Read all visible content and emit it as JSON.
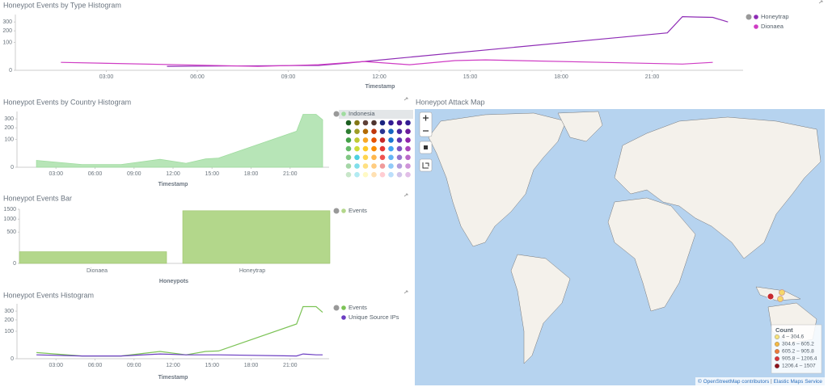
{
  "chart_data": [
    {
      "type": "line",
      "title": "Honeypot Events by Type Histogram",
      "x_label": "Timestamp",
      "scale": "sqrt",
      "xlim": [
        0,
        24
      ],
      "ylim": [
        0,
        400
      ],
      "yticks": [
        0,
        100,
        200,
        300
      ],
      "xticks": [
        {
          "value": 3,
          "label": "03:00"
        },
        {
          "value": 6,
          "label": "06:00"
        },
        {
          "value": 9,
          "label": "09:00"
        },
        {
          "value": 12,
          "label": "12:00"
        },
        {
          "value": 15,
          "label": "15:00"
        },
        {
          "value": 18,
          "label": "18:00"
        },
        {
          "value": 21,
          "label": "21:00"
        }
      ],
      "series": [
        {
          "name": "Honeytrap",
          "color": "#8e2bb5",
          "x": [
            5,
            10,
            11,
            11.5,
            21.5,
            22,
            22.5,
            23,
            23.5
          ],
          "values": [
            2,
            3,
            7,
            10,
            180,
            370,
            365,
            360,
            300
          ]
        },
        {
          "name": "Dionaea",
          "color": "#cf3cc4",
          "x": [
            1.5,
            8,
            10,
            11.5,
            13,
            14.5,
            15.5,
            22,
            23
          ],
          "values": [
            8,
            2,
            4,
            10,
            4,
            12,
            14,
            5,
            8
          ]
        }
      ]
    },
    {
      "type": "area",
      "title": "Honeypot Events by Country Histogram",
      "x_label": "Timestamp",
      "scale": "sqrt",
      "xlim": [
        0,
        24
      ],
      "ylim": [
        0,
        400
      ],
      "yticks": [
        0,
        100,
        200,
        300
      ],
      "xticks": [
        {
          "value": 3,
          "label": "03:00"
        },
        {
          "value": 6,
          "label": "06:00"
        },
        {
          "value": 9,
          "label": "09:00"
        },
        {
          "value": 12,
          "label": "12:00"
        },
        {
          "value": 15,
          "label": "15:00"
        },
        {
          "value": 18,
          "label": "18:00"
        },
        {
          "value": 21,
          "label": "21:00"
        }
      ],
      "x": [
        1.5,
        5,
        8,
        11,
        13,
        14.5,
        15.5,
        21.5,
        22,
        23,
        23.5
      ],
      "series": [
        {
          "name": "Indonesia",
          "color": "#9fdc9f",
          "values": [
            6,
            1,
            1,
            8,
            2,
            9,
            11,
            167,
            360,
            360,
            290
          ]
        }
      ]
    },
    {
      "type": "bar",
      "title": "Honeypot Events Bar",
      "x_label": "Honeypots",
      "scale": "sqrt",
      "ylim": [
        0,
        1500
      ],
      "yticks": [
        0,
        500,
        1000,
        1500
      ],
      "categories": [
        "Dionaea",
        "Honeytrap"
      ],
      "series": [
        {
          "name": "Events",
          "color": "#b3d78b",
          "values": [
            70,
            1420
          ]
        }
      ]
    },
    {
      "type": "line",
      "title": "Honeypot Events Histogram",
      "x_label": "Timestamp",
      "scale": "sqrt",
      "xlim": [
        0,
        24
      ],
      "ylim": [
        0,
        400
      ],
      "yticks": [
        0,
        100,
        200,
        300
      ],
      "xticks": [
        {
          "value": 3,
          "label": "03:00"
        },
        {
          "value": 6,
          "label": "06:00"
        },
        {
          "value": 9,
          "label": "09:00"
        },
        {
          "value": 12,
          "label": "12:00"
        },
        {
          "value": 15,
          "label": "15:00"
        },
        {
          "value": 18,
          "label": "18:00"
        },
        {
          "value": 21,
          "label": "21:00"
        }
      ],
      "x": [
        1.5,
        5,
        8,
        11,
        13,
        14.5,
        15.5,
        21.5,
        22,
        23,
        23.5
      ],
      "series": [
        {
          "name": "Events",
          "color": "#7cc356",
          "values": [
            5,
            1,
            1,
            7,
            2,
            7,
            8,
            160,
            360,
            360,
            285
          ]
        },
        {
          "name": "Unique Source IPs",
          "color": "#6b3dc2",
          "values": [
            2,
            1,
            1,
            3,
            2,
            2,
            2,
            1,
            3,
            2,
            2
          ]
        }
      ]
    }
  ],
  "map": {
    "title": "Honeypot Attack Map",
    "legend_title": "Count",
    "legend": [
      "4 – 304.6",
      "304.6 – 605.2",
      "605.2 – 905.8",
      "905.8 – 1206.4",
      "1206.4 – 1507"
    ],
    "attribution": "© OpenStreetMap contributors",
    "attribution_source": "Elastic Maps Service"
  }
}
